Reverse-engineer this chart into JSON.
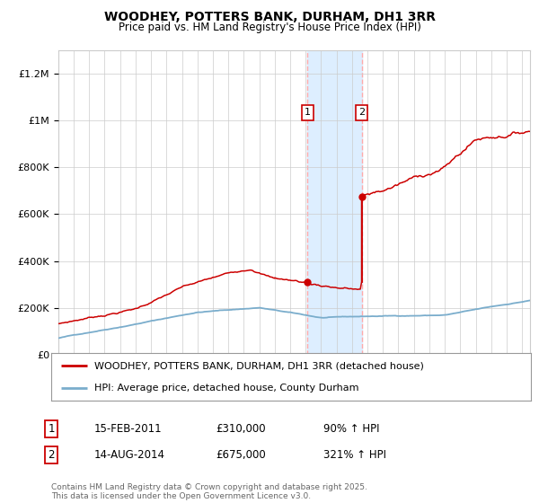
{
  "title": "WOODHEY, POTTERS BANK, DURHAM, DH1 3RR",
  "subtitle": "Price paid vs. HM Land Registry's House Price Index (HPI)",
  "ylim": [
    0,
    1300000
  ],
  "xlim_start": 1995.0,
  "xlim_end": 2025.5,
  "red_line_color": "#cc0000",
  "blue_line_color": "#7aadcc",
  "shading_color": "#ddeeff",
  "dashed_line_color": "#ffaaaa",
  "grid_color": "#cccccc",
  "background_color": "#ffffff",
  "ann1_date": 2011.12,
  "ann1_price": 310000,
  "ann2_date": 2014.62,
  "ann2_price": 675000,
  "ann2_prev_price": 310000,
  "legend_entries": [
    {
      "label": "WOODHEY, POTTERS BANK, DURHAM, DH1 3RR (detached house)",
      "color": "#cc0000"
    },
    {
      "label": "HPI: Average price, detached house, County Durham",
      "color": "#7aadcc"
    }
  ],
  "footnote": "Contains HM Land Registry data © Crown copyright and database right 2025.\nThis data is licensed under the Open Government Licence v3.0.",
  "table_rows": [
    [
      "1",
      "15-FEB-2011",
      "£310,000",
      "90% ↑ HPI"
    ],
    [
      "2",
      "14-AUG-2014",
      "£675,000",
      "321% ↑ HPI"
    ]
  ],
  "ytick_labels": [
    "£0",
    "£200K",
    "£400K",
    "£600K",
    "£800K",
    "£1M",
    "£1.2M"
  ],
  "ytick_values": [
    0,
    200000,
    400000,
    600000,
    800000,
    1000000,
    1200000
  ]
}
